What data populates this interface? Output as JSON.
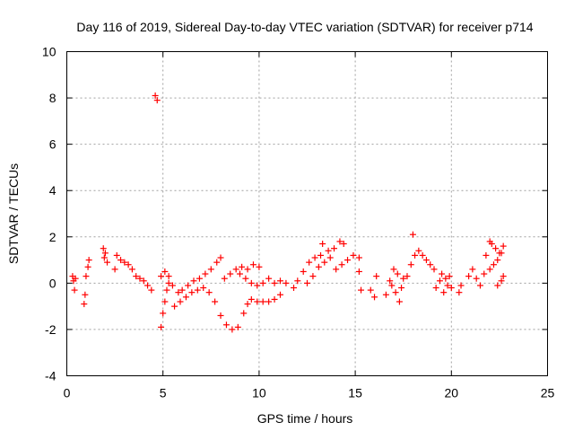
{
  "chart_data": {
    "type": "scatter",
    "title": "Day 116 of 2019, Sidereal Day-to-day VTEC variation (SDTVAR) for receiver p714",
    "xlabel": "GPS time / hours",
    "ylabel": "SDTVAR / TECUs",
    "xlim": [
      0,
      25
    ],
    "ylim": [
      -4,
      10
    ],
    "xticks": [
      0,
      5,
      10,
      15,
      20,
      25
    ],
    "yticks": [
      -4,
      -2,
      0,
      2,
      4,
      6,
      8,
      10
    ],
    "grid": true,
    "marker": "+",
    "color": "#ff0000",
    "series": [
      {
        "name": "SDTVAR",
        "points": [
          [
            0.3,
            0.3
          ],
          [
            0.35,
            0.1
          ],
          [
            0.4,
            -0.3
          ],
          [
            0.45,
            0.2
          ],
          [
            0.9,
            -0.9
          ],
          [
            0.95,
            -0.5
          ],
          [
            1.0,
            0.3
          ],
          [
            1.1,
            0.7
          ],
          [
            1.15,
            1.0
          ],
          [
            1.9,
            1.5
          ],
          [
            1.95,
            1.1
          ],
          [
            2.0,
            1.3
          ],
          [
            2.1,
            0.9
          ],
          [
            2.5,
            0.6
          ],
          [
            2.6,
            1.2
          ],
          [
            2.8,
            1.0
          ],
          [
            3.0,
            0.9
          ],
          [
            3.2,
            0.8
          ],
          [
            3.4,
            0.6
          ],
          [
            3.6,
            0.3
          ],
          [
            3.8,
            0.2
          ],
          [
            4.0,
            0.1
          ],
          [
            4.2,
            -0.1
          ],
          [
            4.4,
            -0.3
          ],
          [
            4.6,
            8.1
          ],
          [
            4.7,
            7.9
          ],
          [
            4.9,
            -1.9
          ],
          [
            5.0,
            -1.3
          ],
          [
            5.1,
            -0.8
          ],
          [
            5.2,
            -0.3
          ],
          [
            5.3,
            0.0
          ],
          [
            4.9,
            0.3
          ],
          [
            5.1,
            0.5
          ],
          [
            5.3,
            0.3
          ],
          [
            5.5,
            -0.1
          ],
          [
            5.8,
            -0.4
          ],
          [
            6.0,
            -0.3
          ],
          [
            6.3,
            -0.1
          ],
          [
            6.6,
            0.1
          ],
          [
            6.9,
            0.2
          ],
          [
            7.2,
            0.4
          ],
          [
            7.5,
            0.6
          ],
          [
            7.8,
            0.9
          ],
          [
            8.0,
            1.1
          ],
          [
            5.6,
            -1.0
          ],
          [
            5.9,
            -0.8
          ],
          [
            6.2,
            -0.6
          ],
          [
            6.5,
            -0.4
          ],
          [
            6.8,
            -0.3
          ],
          [
            7.1,
            -0.2
          ],
          [
            7.4,
            -0.4
          ],
          [
            7.7,
            -0.8
          ],
          [
            8.0,
            -1.4
          ],
          [
            8.3,
            -1.8
          ],
          [
            8.6,
            -2.0
          ],
          [
            8.9,
            -1.9
          ],
          [
            9.2,
            -1.3
          ],
          [
            9.4,
            -0.9
          ],
          [
            9.6,
            -0.7
          ],
          [
            9.9,
            -0.8
          ],
          [
            10.2,
            -0.8
          ],
          [
            10.5,
            -0.8
          ],
          [
            10.8,
            -0.7
          ],
          [
            11.1,
            -0.5
          ],
          [
            8.2,
            0.2
          ],
          [
            8.5,
            0.4
          ],
          [
            8.8,
            0.6
          ],
          [
            9.1,
            0.7
          ],
          [
            9.4,
            0.6
          ],
          [
            9.7,
            0.8
          ],
          [
            10.0,
            0.7
          ],
          [
            9.0,
            0.4
          ],
          [
            9.3,
            0.2
          ],
          [
            9.6,
            0.0
          ],
          [
            9.9,
            -0.1
          ],
          [
            10.2,
            0.0
          ],
          [
            10.5,
            0.2
          ],
          [
            10.8,
            0.0
          ],
          [
            11.1,
            0.1
          ],
          [
            11.4,
            0.0
          ],
          [
            11.8,
            -0.2
          ],
          [
            12.0,
            0.1
          ],
          [
            12.3,
            0.5
          ],
          [
            12.6,
            0.9
          ],
          [
            12.9,
            1.1
          ],
          [
            13.2,
            1.2
          ],
          [
            12.5,
            0.0
          ],
          [
            12.8,
            0.3
          ],
          [
            13.1,
            0.7
          ],
          [
            13.4,
            0.9
          ],
          [
            13.7,
            1.1
          ],
          [
            13.3,
            1.7
          ],
          [
            13.6,
            1.4
          ],
          [
            13.9,
            1.5
          ],
          [
            14.2,
            1.8
          ],
          [
            14.4,
            1.7
          ],
          [
            14.0,
            0.6
          ],
          [
            14.3,
            0.8
          ],
          [
            14.6,
            1.0
          ],
          [
            14.9,
            1.2
          ],
          [
            15.2,
            1.1
          ],
          [
            15.2,
            0.5
          ],
          [
            15.3,
            -0.3
          ],
          [
            15.8,
            -0.3
          ],
          [
            16.0,
            -0.6
          ],
          [
            16.1,
            0.3
          ],
          [
            16.6,
            -0.5
          ],
          [
            16.8,
            0.1
          ],
          [
            17.0,
            0.6
          ],
          [
            17.2,
            0.4
          ],
          [
            17.3,
            -0.8
          ],
          [
            17.5,
            0.2
          ],
          [
            16.9,
            -0.1
          ],
          [
            17.1,
            -0.4
          ],
          [
            17.4,
            -0.2
          ],
          [
            17.7,
            0.3
          ],
          [
            17.9,
            0.8
          ],
          [
            18.0,
            2.1
          ],
          [
            18.1,
            1.2
          ],
          [
            18.3,
            1.4
          ],
          [
            18.5,
            1.2
          ],
          [
            18.7,
            1.0
          ],
          [
            18.9,
            0.8
          ],
          [
            19.1,
            0.6
          ],
          [
            19.2,
            -0.2
          ],
          [
            19.4,
            0.1
          ],
          [
            19.6,
            -0.4
          ],
          [
            19.8,
            -0.1
          ],
          [
            20.0,
            -0.2
          ],
          [
            19.5,
            0.4
          ],
          [
            19.7,
            0.2
          ],
          [
            19.9,
            0.3
          ],
          [
            20.4,
            -0.4
          ],
          [
            20.5,
            -0.1
          ],
          [
            20.9,
            0.3
          ],
          [
            21.1,
            0.6
          ],
          [
            21.3,
            0.2
          ],
          [
            21.5,
            -0.1
          ],
          [
            21.7,
            0.4
          ],
          [
            21.8,
            1.2
          ],
          [
            22.0,
            1.8
          ],
          [
            22.1,
            1.7
          ],
          [
            22.3,
            1.5
          ],
          [
            22.5,
            1.3
          ],
          [
            22.0,
            0.6
          ],
          [
            22.2,
            0.8
          ],
          [
            22.4,
            1.0
          ],
          [
            22.6,
            1.3
          ],
          [
            22.7,
            1.6
          ],
          [
            22.4,
            -0.1
          ],
          [
            22.6,
            0.1
          ],
          [
            22.7,
            0.3
          ]
        ]
      }
    ]
  }
}
